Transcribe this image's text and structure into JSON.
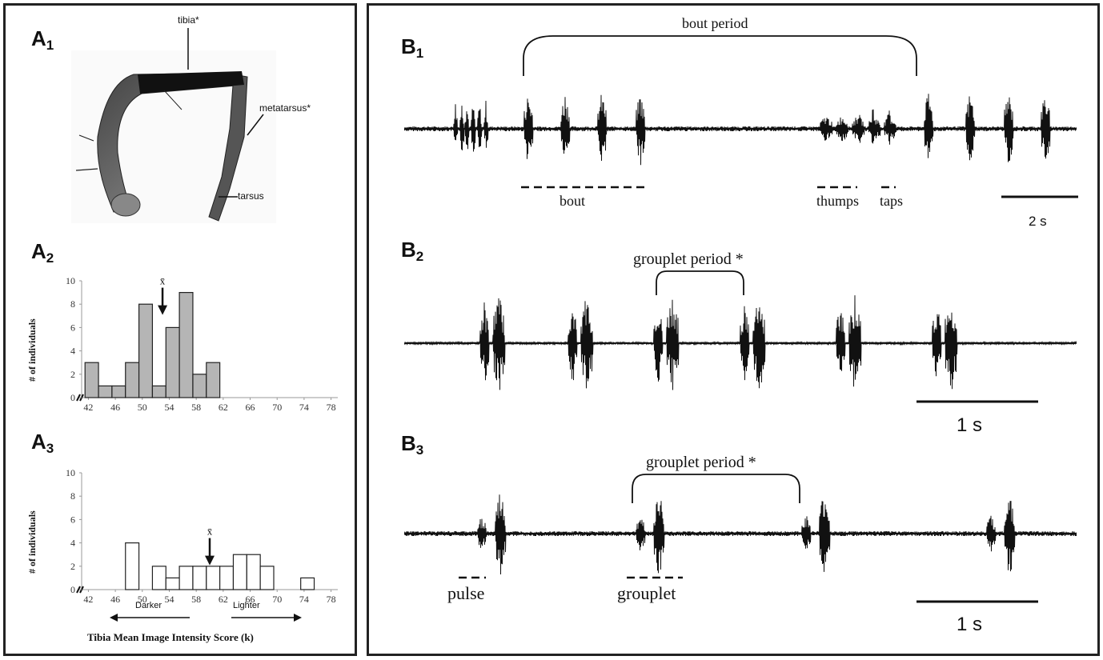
{
  "panel_a": {
    "a1": {
      "label_main": "A",
      "label_sub": "1",
      "parts": {
        "tibia": "tibia*",
        "metatarsus": "metatarsus*",
        "tarsus": "tarsus"
      }
    },
    "a2": {
      "label_main": "A",
      "label_sub": "2"
    },
    "a3": {
      "label_main": "A",
      "label_sub": "3",
      "darker": "Darker",
      "lighter": "Lighter",
      "xlabel": "Tibia Mean Image Intensity Score (k)"
    },
    "ylabel": "# of individuals",
    "mean_symbol": "x̄"
  },
  "panel_b": {
    "b1": {
      "label_main": "B",
      "label_sub": "1",
      "bout_period": "bout period",
      "bout": "bout",
      "thumps": "thumps",
      "taps": "taps",
      "scale": "2 s"
    },
    "b2": {
      "label_main": "B",
      "label_sub": "2",
      "grouplet_period": "grouplet period *",
      "scale": "1 s"
    },
    "b3": {
      "label_main": "B",
      "label_sub": "3",
      "grouplet_period": "grouplet period *",
      "pulse": "pulse",
      "grouplet": "grouplet",
      "scale": "1 s"
    }
  },
  "chart_data": [
    {
      "type": "bar",
      "id": "A2",
      "x_ticks": [
        42,
        46,
        50,
        54,
        58,
        62,
        66,
        70,
        74,
        78
      ],
      "bin_left_edges": [
        41.5,
        43.5,
        45.5,
        47.5,
        49.5,
        51.5,
        53.5,
        55.5,
        57.5,
        59.5
      ],
      "values": [
        3,
        1,
        1,
        3,
        8,
        1,
        6,
        9,
        2,
        3
      ],
      "bin_width": 2,
      "mean_x": 53,
      "ylabel": "# of individuals",
      "y_ticks": [
        0,
        2,
        4,
        6,
        8,
        10
      ],
      "ylim": [
        0,
        10
      ],
      "xlim": [
        41,
        79
      ],
      "fill": "#b5b5b5"
    },
    {
      "type": "bar",
      "id": "A3",
      "x_ticks": [
        42,
        46,
        50,
        54,
        58,
        62,
        66,
        70,
        74,
        78
      ],
      "bin_left_edges": [
        47.5,
        51.5,
        53.5,
        55.5,
        57.5,
        59.5,
        61.5,
        63.5,
        65.5,
        67.5,
        73.5
      ],
      "values": [
        4,
        2,
        1,
        2,
        2,
        2,
        2,
        3,
        3,
        2,
        1
      ],
      "bin_width": 2,
      "mean_x": 60,
      "xlabel": "Tibia Mean Image Intensity Score (k)",
      "ylabel": "# of individuals",
      "y_ticks": [
        0,
        2,
        4,
        6,
        8,
        10
      ],
      "ylim": [
        0,
        10
      ],
      "xlim": [
        41,
        79
      ],
      "fill": "#ffffff"
    }
  ]
}
